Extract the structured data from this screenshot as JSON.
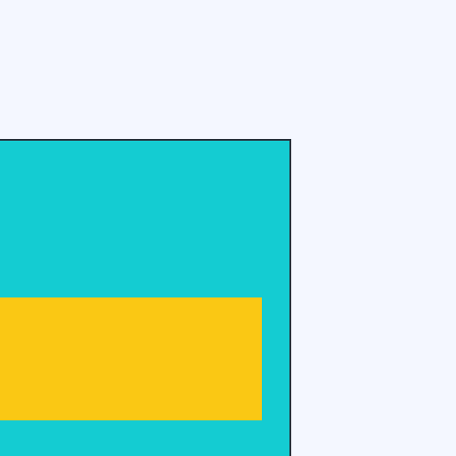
{
  "colors": {
    "background": "#f4f7ff",
    "panel_fill": "#14ccd2",
    "panel_border": "#28323c",
    "bar_fill": "#fac814"
  }
}
